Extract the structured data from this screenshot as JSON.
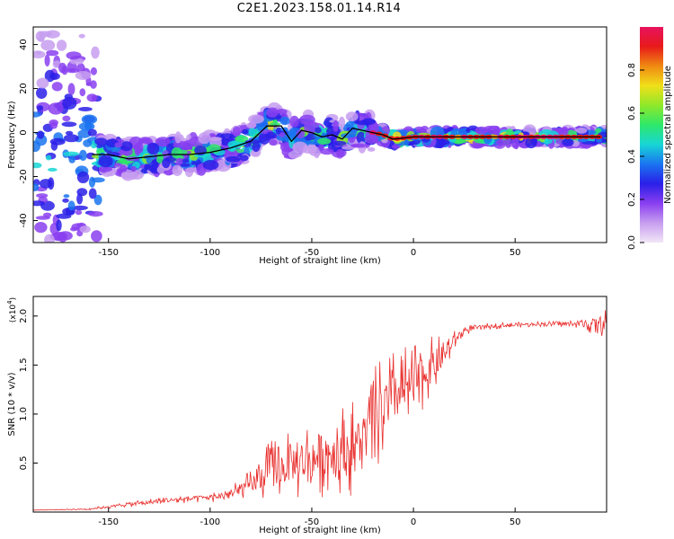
{
  "title": "C2E1.2023.158.01.14.R14",
  "colors": {
    "snr_line": "#e8302e",
    "ridge_line": "#000000",
    "axis": "#000000",
    "grid": "#888888",
    "colormap": [
      "#f2e6f7",
      "#c79ef0",
      "#8a3ff0",
      "#2a1fe8",
      "#1a74f0",
      "#18d6d6",
      "#2ee86a",
      "#8fe82a",
      "#f0e01a",
      "#f08a12",
      "#e81a1a",
      "#e8125e"
    ]
  },
  "chart_data": [
    {
      "type": "heatmap",
      "title": "C2E1.2023.158.01.14.R14",
      "xlabel": "Height of straight line (km)",
      "ylabel": "Frequency (Hz)",
      "xlim": [
        -187,
        95
      ],
      "ylim": [
        -50,
        48
      ],
      "xticks": [
        -150,
        -100,
        -50,
        0,
        50
      ],
      "xtick_labels": [
        "-150",
        "-100",
        "-50",
        "0",
        "50"
      ],
      "yticks": [
        -40,
        -20,
        0,
        20,
        40
      ],
      "ytick_labels": [
        "-40",
        "-20",
        "0",
        "20",
        "40"
      ],
      "colorbar": {
        "label": "Normalized spectral amplitude",
        "range": [
          0,
          1
        ],
        "ticks": [
          0.0,
          0.2,
          0.4,
          0.6,
          0.8
        ],
        "tick_labels": [
          "0.0",
          "0.2",
          "0.4",
          "0.6",
          "0.8"
        ]
      },
      "ridge": {
        "x": [
          -158,
          -150,
          -140,
          -130,
          -120,
          -110,
          -100,
          -90,
          -80,
          -72,
          -65,
          -60,
          -55,
          -50,
          -45,
          -40,
          -35,
          -30,
          -25,
          -20,
          -15,
          -10,
          0,
          10,
          20,
          30,
          50,
          70,
          92
        ],
        "y": [
          -10,
          -10,
          -12,
          -11,
          -10,
          -10,
          -9,
          -7,
          -4,
          3,
          3,
          -4,
          1,
          0,
          -2,
          -1,
          -3,
          2,
          1,
          0,
          -1,
          -3,
          -2,
          -2,
          -2,
          -2,
          -2,
          -2,
          -2
        ]
      }
    },
    {
      "type": "line",
      "title": "",
      "xlabel": "Height of straight line (km)",
      "ylabel": "SNR (10 * v/v)",
      "multiplier_label": "(x10",
      "multiplier_exp": "4",
      "xlim": [
        -187,
        95
      ],
      "ylim": [
        0,
        2.2
      ],
      "xticks": [
        -150,
        -100,
        -50,
        0,
        50
      ],
      "xtick_labels": [
        "-150",
        "-100",
        "-50",
        "0",
        "50"
      ],
      "yticks": [
        0.5,
        1.0,
        1.5,
        2.0
      ],
      "ytick_labels": [
        "0.5",
        "1.0",
        "1.5",
        "2.0"
      ],
      "series": [
        {
          "name": "SNR",
          "x": [
            -187,
            -160,
            -140,
            -120,
            -100,
            -90,
            -80,
            -75,
            -70,
            -65,
            -60,
            -55,
            -50,
            -45,
            -40,
            -35,
            -30,
            -25,
            -20,
            -15,
            -10,
            -5,
            0,
            5,
            10,
            15,
            20,
            25,
            30,
            40,
            50,
            60,
            70,
            80,
            90,
            95
          ],
          "y": [
            0.02,
            0.03,
            0.08,
            0.12,
            0.15,
            0.18,
            0.28,
            0.35,
            0.45,
            0.45,
            0.5,
            0.5,
            0.55,
            0.6,
            0.6,
            0.65,
            0.65,
            0.75,
            0.9,
            1.05,
            1.15,
            1.25,
            1.3,
            1.4,
            1.5,
            1.6,
            1.75,
            1.85,
            1.88,
            1.9,
            1.91,
            1.92,
            1.92,
            1.92,
            1.92,
            1.92
          ],
          "noise_amplitude": [
            0,
            0.01,
            0.03,
            0.04,
            0.05,
            0.08,
            0.15,
            0.25,
            0.3,
            0.35,
            0.35,
            0.4,
            0.4,
            0.45,
            0.45,
            0.45,
            0.5,
            0.5,
            0.55,
            0.55,
            0.5,
            0.45,
            0.4,
            0.35,
            0.3,
            0.2,
            0.1,
            0.05,
            0.04,
            0.03,
            0.03,
            0.03,
            0.03,
            0.04,
            0.12,
            0.15
          ]
        }
      ]
    }
  ]
}
